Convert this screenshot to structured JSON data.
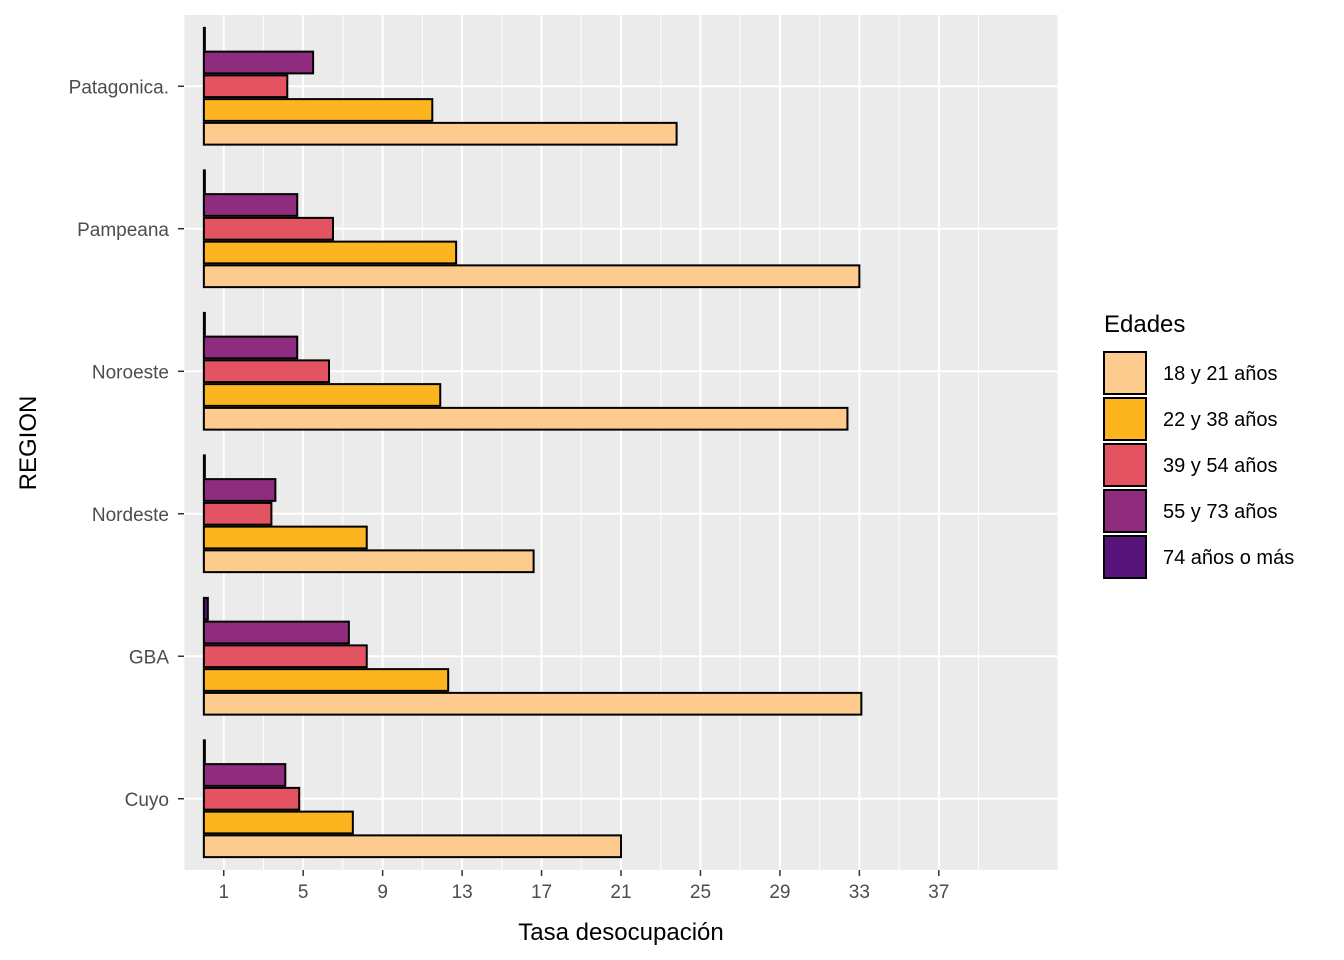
{
  "chart_data": {
    "type": "bar",
    "orientation": "horizontal",
    "xlabel": "Tasa desocupación",
    "ylabel": "REGION",
    "xlim": [
      -1,
      43
    ],
    "x_ticks": [
      1,
      5,
      9,
      13,
      17,
      21,
      25,
      29,
      33,
      37
    ],
    "grid": true,
    "legend": {
      "title": "Edades",
      "position": "right"
    },
    "categories": [
      "Cuyo",
      "GBA",
      "Nordeste",
      "Noroeste",
      "Pampeana",
      "Patagonica."
    ],
    "series": [
      {
        "name": "18 y 21 años",
        "color": "#FECB8F",
        "values": [
          21.0,
          33.1,
          16.6,
          32.4,
          33.0,
          23.8
        ]
      },
      {
        "name": "22 y 38 años",
        "color": "#FCB51F",
        "values": [
          7.5,
          12.3,
          8.2,
          11.9,
          12.7,
          11.5
        ]
      },
      {
        "name": "39 y 54 años",
        "color": "#E45361",
        "values": [
          4.8,
          8.2,
          3.4,
          6.3,
          6.5,
          4.2
        ]
      },
      {
        "name": "55 y 73 años",
        "color": "#8F2C7E",
        "values": [
          4.1,
          7.3,
          3.6,
          4.7,
          4.7,
          5.5
        ]
      },
      {
        "name": "74 años o más",
        "color": "#56137A",
        "values": [
          0.05,
          0.2,
          0.05,
          0.05,
          0.05,
          0.05
        ]
      }
    ]
  }
}
